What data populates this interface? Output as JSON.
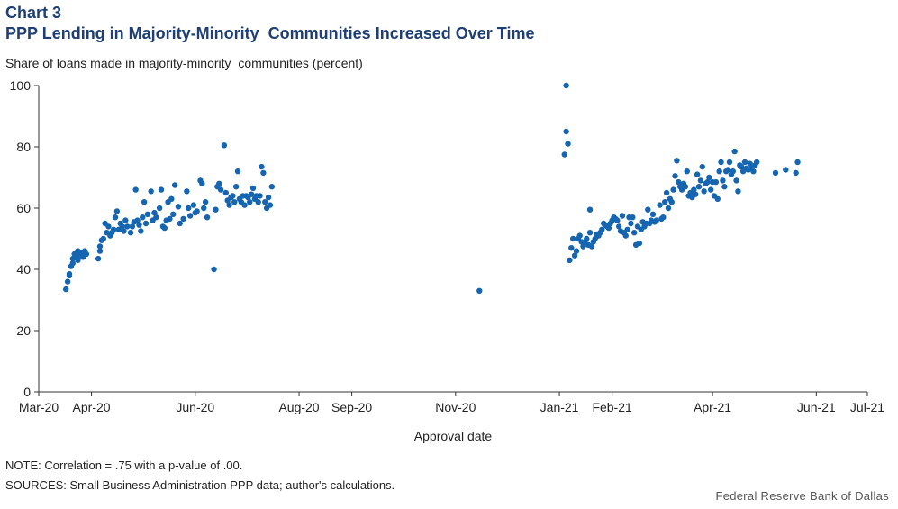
{
  "header": {
    "chart_number": "Chart 3",
    "title": "PPP Lending in Majority-Minority  Communities Increased Over Time",
    "subtitle": "Share of loans made in majority-minority  communities (percent)"
  },
  "footer": {
    "note": "NOTE: Correlation = .75 with a p-value of .00.",
    "sources": "SOURCES: Small Business Administration PPP data; author's calculations.",
    "credit": "Federal Reserve Bank of Dallas"
  },
  "colors": {
    "marker": "#1565b0",
    "axis": "#333333"
  },
  "chart_data": {
    "type": "scatter",
    "title": "PPP Lending in Majority-Minority  Communities Increased Over Time",
    "xlabel": "Approval date",
    "ylabel": "Share of loans made in majority-minority  communities (percent)",
    "xlim": [
      "2020-03-01",
      "2021-07-01"
    ],
    "ylim": [
      0,
      100
    ],
    "x_ticks": [
      {
        "date": "2020-03-01",
        "label": "Mar-20"
      },
      {
        "date": "2020-04-01",
        "label": "Apr-20"
      },
      {
        "date": "2020-06-01",
        "label": "Jun-20"
      },
      {
        "date": "2020-08-01",
        "label": "Aug-20"
      },
      {
        "date": "2020-09-01",
        "label": "Sep-20"
      },
      {
        "date": "2020-11-01",
        "label": "Nov-20"
      },
      {
        "date": "2021-01-01",
        "label": "Jan-21"
      },
      {
        "date": "2021-02-01",
        "label": "Feb-21"
      },
      {
        "date": "2021-04-01",
        "label": "Apr-21"
      },
      {
        "date": "2021-06-01",
        "label": "Jun-21"
      },
      {
        "date": "2021-07-01",
        "label": "Jul-21"
      }
    ],
    "y_ticks": [
      0,
      20,
      40,
      60,
      80,
      100
    ],
    "grid": false,
    "points": [
      [
        "2020-03-17",
        33.5
      ],
      [
        "2020-03-18",
        36
      ],
      [
        "2020-03-19",
        38.5
      ],
      [
        "2020-03-19",
        38
      ],
      [
        "2020-03-20",
        41
      ],
      [
        "2020-03-21",
        42
      ],
      [
        "2020-03-21",
        43.5
      ],
      [
        "2020-03-22",
        45
      ],
      [
        "2020-03-23",
        44
      ],
      [
        "2020-03-24",
        46
      ],
      [
        "2020-03-24",
        43
      ],
      [
        "2020-03-25",
        44.5
      ],
      [
        "2020-03-26",
        45.5
      ],
      [
        "2020-03-27",
        44
      ],
      [
        "2020-03-28",
        46
      ],
      [
        "2020-03-29",
        45
      ],
      [
        "2020-04-05",
        43.5
      ],
      [
        "2020-04-06",
        46
      ],
      [
        "2020-04-06",
        47.5
      ],
      [
        "2020-04-07",
        49.5
      ],
      [
        "2020-04-08",
        50
      ],
      [
        "2020-04-09",
        55
      ],
      [
        "2020-04-10",
        52
      ],
      [
        "2020-04-11",
        54
      ],
      [
        "2020-04-12",
        51
      ],
      [
        "2020-04-13",
        52
      ],
      [
        "2020-04-14",
        53
      ],
      [
        "2020-04-15",
        57
      ],
      [
        "2020-04-16",
        59
      ],
      [
        "2020-04-17",
        53
      ],
      [
        "2020-04-18",
        55
      ],
      [
        "2020-04-19",
        54
      ],
      [
        "2020-04-20",
        52.5
      ],
      [
        "2020-04-21",
        56
      ],
      [
        "2020-04-22",
        54
      ],
      [
        "2020-04-24",
        52
      ],
      [
        "2020-04-25",
        54
      ],
      [
        "2020-04-26",
        55.5
      ],
      [
        "2020-04-27",
        66
      ],
      [
        "2020-04-28",
        56
      ],
      [
        "2020-04-29",
        54.5
      ],
      [
        "2020-04-30",
        52.5
      ],
      [
        "2020-05-01",
        57
      ],
      [
        "2020-05-02",
        62
      ],
      [
        "2020-05-03",
        55
      ],
      [
        "2020-05-04",
        58
      ],
      [
        "2020-05-06",
        65.5
      ],
      [
        "2020-05-07",
        56
      ],
      [
        "2020-05-08",
        58.5
      ],
      [
        "2020-05-09",
        57
      ],
      [
        "2020-05-11",
        60
      ],
      [
        "2020-05-12",
        66
      ],
      [
        "2020-05-13",
        54
      ],
      [
        "2020-05-14",
        53.5
      ],
      [
        "2020-05-15",
        56
      ],
      [
        "2020-05-16",
        62
      ],
      [
        "2020-05-17",
        56.5
      ],
      [
        "2020-05-18",
        63
      ],
      [
        "2020-05-19",
        58
      ],
      [
        "2020-05-20",
        67.5
      ],
      [
        "2020-05-22",
        60.5
      ],
      [
        "2020-05-23",
        55
      ],
      [
        "2020-05-25",
        56.5
      ],
      [
        "2020-05-27",
        65.5
      ],
      [
        "2020-05-28",
        60
      ],
      [
        "2020-05-29",
        57.5
      ],
      [
        "2020-05-31",
        61
      ],
      [
        "2020-06-01",
        58.5
      ],
      [
        "2020-06-02",
        59
      ],
      [
        "2020-06-04",
        69
      ],
      [
        "2020-06-05",
        68
      ],
      [
        "2020-06-06",
        60
      ],
      [
        "2020-06-07",
        62
      ],
      [
        "2020-06-08",
        57
      ],
      [
        "2020-06-12",
        40
      ],
      [
        "2020-06-13",
        59.5
      ],
      [
        "2020-06-14",
        67
      ],
      [
        "2020-06-15",
        68
      ],
      [
        "2020-06-16",
        66
      ],
      [
        "2020-06-18",
        80.5
      ],
      [
        "2020-06-19",
        65
      ],
      [
        "2020-06-20",
        62.5
      ],
      [
        "2020-06-21",
        61
      ],
      [
        "2020-06-22",
        63.5
      ],
      [
        "2020-06-23",
        64
      ],
      [
        "2020-06-24",
        62
      ],
      [
        "2020-06-25",
        67
      ],
      [
        "2020-06-26",
        72
      ],
      [
        "2020-06-27",
        63
      ],
      [
        "2020-06-28",
        62
      ],
      [
        "2020-06-29",
        64
      ],
      [
        "2020-06-30",
        61
      ],
      [
        "2020-07-01",
        64
      ],
      [
        "2020-07-02",
        63.5
      ],
      [
        "2020-07-03",
        62
      ],
      [
        "2020-07-04",
        64.5
      ],
      [
        "2020-07-05",
        66.5
      ],
      [
        "2020-07-06",
        63
      ],
      [
        "2020-07-07",
        64
      ],
      [
        "2020-07-08",
        62
      ],
      [
        "2020-07-09",
        64
      ],
      [
        "2020-07-10",
        73.5
      ],
      [
        "2020-07-11",
        71.5
      ],
      [
        "2020-07-12",
        62
      ],
      [
        "2020-07-13",
        60
      ],
      [
        "2020-07-14",
        63.5
      ],
      [
        "2020-07-15",
        61
      ],
      [
        "2020-07-16",
        67
      ],
      [
        "2020-11-15",
        33
      ],
      [
        "2021-01-04",
        77.5
      ],
      [
        "2021-01-05",
        85
      ],
      [
        "2021-01-05",
        100
      ],
      [
        "2021-01-06",
        81
      ],
      [
        "2021-01-07",
        43
      ],
      [
        "2021-01-08",
        47
      ],
      [
        "2021-01-09",
        50
      ],
      [
        "2021-01-10",
        44.5
      ],
      [
        "2021-01-11",
        46
      ],
      [
        "2021-01-12",
        50
      ],
      [
        "2021-01-13",
        51
      ],
      [
        "2021-01-14",
        49
      ],
      [
        "2021-01-15",
        47.5
      ],
      [
        "2021-01-16",
        49
      ],
      [
        "2021-01-17",
        50
      ],
      [
        "2021-01-18",
        48
      ],
      [
        "2021-01-19",
        52
      ],
      [
        "2021-01-19",
        59.5
      ],
      [
        "2021-01-20",
        47.5
      ],
      [
        "2021-01-21",
        49
      ],
      [
        "2021-01-22",
        50
      ],
      [
        "2021-01-23",
        51.5
      ],
      [
        "2021-01-24",
        51
      ],
      [
        "2021-01-25",
        52
      ],
      [
        "2021-01-26",
        53
      ],
      [
        "2021-01-27",
        55
      ],
      [
        "2021-01-28",
        54.5
      ],
      [
        "2021-01-29",
        54
      ],
      [
        "2021-01-30",
        53.5
      ],
      [
        "2021-01-31",
        55
      ],
      [
        "2021-02-01",
        56
      ],
      [
        "2021-02-02",
        57
      ],
      [
        "2021-02-03",
        56.5
      ],
      [
        "2021-02-04",
        56
      ],
      [
        "2021-02-05",
        54
      ],
      [
        "2021-02-06",
        52.5
      ],
      [
        "2021-02-07",
        57.5
      ],
      [
        "2021-02-08",
        52
      ],
      [
        "2021-02-09",
        51
      ],
      [
        "2021-02-10",
        53
      ],
      [
        "2021-02-11",
        57
      ],
      [
        "2021-02-12",
        55
      ],
      [
        "2021-02-13",
        57
      ],
      [
        "2021-02-14",
        52
      ],
      [
        "2021-02-15",
        48
      ],
      [
        "2021-02-16",
        54
      ],
      [
        "2021-02-17",
        48.5
      ],
      [
        "2021-02-18",
        53
      ],
      [
        "2021-02-19",
        55.5
      ],
      [
        "2021-02-20",
        54
      ],
      [
        "2021-02-21",
        55
      ],
      [
        "2021-02-22",
        59.5
      ],
      [
        "2021-02-23",
        55
      ],
      [
        "2021-02-24",
        56
      ],
      [
        "2021-02-25",
        58
      ],
      [
        "2021-02-26",
        55.5
      ],
      [
        "2021-02-27",
        56
      ],
      [
        "2021-03-01",
        61
      ],
      [
        "2021-03-02",
        56.5
      ],
      [
        "2021-03-03",
        57
      ],
      [
        "2021-03-04",
        62
      ],
      [
        "2021-03-05",
        65
      ],
      [
        "2021-03-06",
        60
      ],
      [
        "2021-03-07",
        63
      ],
      [
        "2021-03-08",
        62
      ],
      [
        "2021-03-09",
        66
      ],
      [
        "2021-03-10",
        70.5
      ],
      [
        "2021-03-11",
        75.5
      ],
      [
        "2021-03-12",
        68.5
      ],
      [
        "2021-03-13",
        67
      ],
      [
        "2021-03-14",
        66
      ],
      [
        "2021-03-15",
        68
      ],
      [
        "2021-03-16",
        67
      ],
      [
        "2021-03-17",
        72
      ],
      [
        "2021-03-18",
        64
      ],
      [
        "2021-03-19",
        65
      ],
      [
        "2021-03-20",
        63.5
      ],
      [
        "2021-03-21",
        66
      ],
      [
        "2021-03-22",
        64.5
      ],
      [
        "2021-03-23",
        71
      ],
      [
        "2021-03-24",
        67
      ],
      [
        "2021-03-25",
        69
      ],
      [
        "2021-03-26",
        73.5
      ],
      [
        "2021-03-27",
        65.5
      ],
      [
        "2021-03-28",
        68
      ],
      [
        "2021-03-29",
        68.5
      ],
      [
        "2021-03-30",
        70
      ],
      [
        "2021-03-31",
        66
      ],
      [
        "2021-04-01",
        68.5
      ],
      [
        "2021-04-02",
        64
      ],
      [
        "2021-04-03",
        68.5
      ],
      [
        "2021-04-04",
        63
      ],
      [
        "2021-04-05",
        72
      ],
      [
        "2021-04-06",
        75
      ],
      [
        "2021-04-07",
        69
      ],
      [
        "2021-04-08",
        67
      ],
      [
        "2021-04-09",
        72
      ],
      [
        "2021-04-10",
        72.5
      ],
      [
        "2021-04-11",
        75
      ],
      [
        "2021-04-12",
        71
      ],
      [
        "2021-04-13",
        72
      ],
      [
        "2021-04-14",
        78.5
      ],
      [
        "2021-04-15",
        69
      ],
      [
        "2021-04-16",
        65.5
      ],
      [
        "2021-04-17",
        74
      ],
      [
        "2021-04-18",
        73.5
      ],
      [
        "2021-04-19",
        72
      ],
      [
        "2021-04-20",
        75
      ],
      [
        "2021-04-21",
        73
      ],
      [
        "2021-04-22",
        72.5
      ],
      [
        "2021-04-23",
        74.5
      ],
      [
        "2021-04-24",
        73
      ],
      [
        "2021-04-25",
        72
      ],
      [
        "2021-04-26",
        74
      ],
      [
        "2021-04-27",
        75
      ],
      [
        "2021-05-08",
        71.5
      ],
      [
        "2021-05-14",
        72.5
      ],
      [
        "2021-05-20",
        71.5
      ],
      [
        "2021-05-21",
        75
      ]
    ]
  }
}
